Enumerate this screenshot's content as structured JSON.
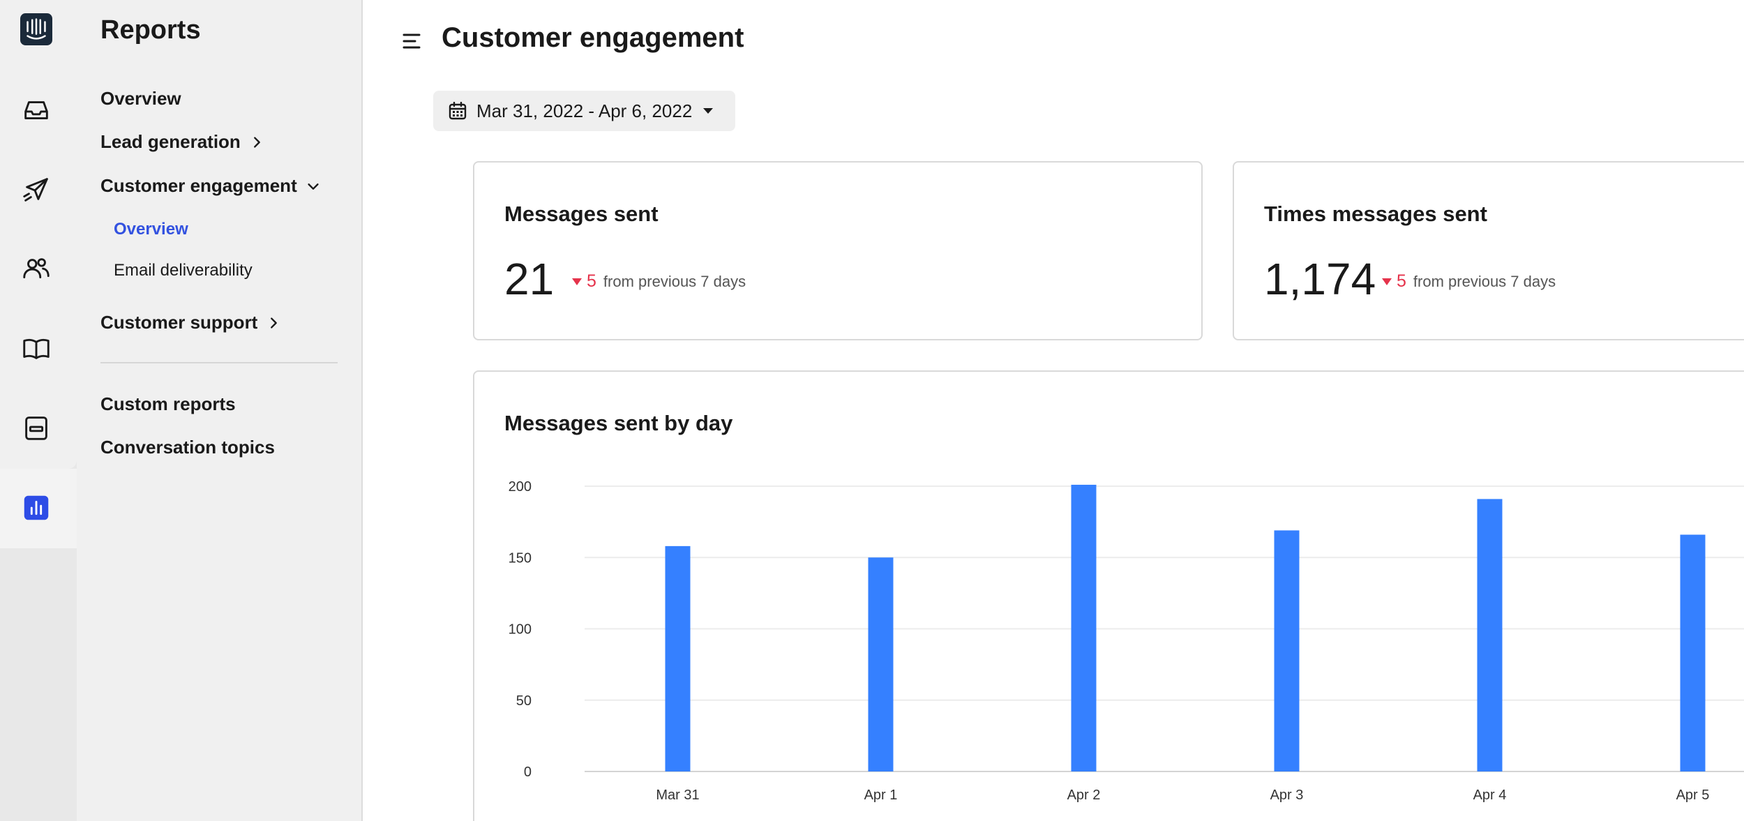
{
  "nav": {
    "title": "Reports",
    "items": [
      {
        "label": "Overview"
      },
      {
        "label": "Lead generation"
      },
      {
        "label": "Customer engagement"
      },
      {
        "label": "Customer support"
      },
      {
        "label": "Custom reports"
      },
      {
        "label": "Conversation topics"
      }
    ],
    "sub_items": [
      {
        "label": "Overview"
      },
      {
        "label": "Email deliverability"
      }
    ]
  },
  "header": {
    "title": "Customer engagement",
    "date_range": "Mar 31, 2022 - Apr 6, 2022"
  },
  "cards": [
    {
      "title": "Messages sent",
      "value": "21",
      "delta": "5",
      "delta_text": "from previous 7 days"
    },
    {
      "title": "Times messages sent",
      "value": "1,174",
      "delta": "5",
      "delta_text": "from previous 7 days"
    }
  ],
  "chart_section": {
    "title": "Messages sent by day"
  },
  "chart_data": {
    "type": "bar",
    "title": "Messages sent by day",
    "categories": [
      "Mar 31",
      "Apr 1",
      "Apr 2",
      "Apr 3",
      "Apr 4",
      "Apr 5"
    ],
    "values": [
      158,
      150,
      201,
      169,
      191,
      166
    ],
    "ylim": [
      0,
      200
    ],
    "yticks": [
      "0",
      "50",
      "100",
      "150",
      "200"
    ],
    "grid": true,
    "bar_color": "#3580ff"
  },
  "colors": {
    "accent": "#3352e0",
    "negative": "#e5334b"
  }
}
